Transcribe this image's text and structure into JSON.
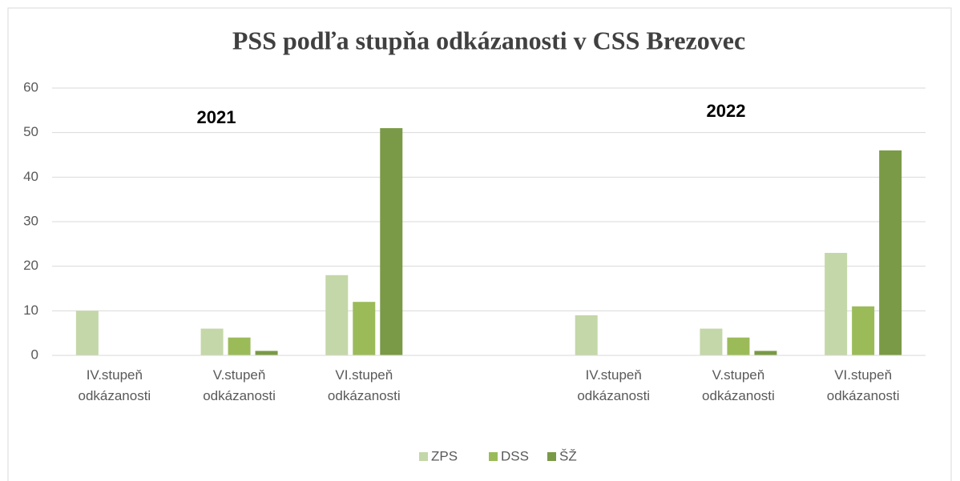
{
  "chart_data": {
    "type": "bar",
    "title": "PSS podľa stupňa odkázanosti v CSS Brezovec",
    "annotations": [
      "2021",
      "2022"
    ],
    "categories": [
      "IV.stupeň odkázanosti",
      "V.stupeň odkázanosti",
      "VI.stupeň odkázanosti",
      null,
      "IV.stupeň odkázanosti",
      "V.stupeň odkázanosti",
      "VI.stupeň odkázanosti"
    ],
    "series": [
      {
        "name": "ZPS",
        "color": "#c4d7a8",
        "values": [
          10,
          6,
          18,
          null,
          9,
          6,
          23
        ]
      },
      {
        "name": "DSS",
        "color": "#9bbb59",
        "values": [
          null,
          4,
          12,
          null,
          null,
          4,
          11
        ]
      },
      {
        "name": "ŠŽ",
        "color": "#7a9a47",
        "values": [
          null,
          1,
          51,
          null,
          null,
          1,
          46
        ]
      }
    ],
    "ylim": [
      0,
      60
    ],
    "yticks": [
      0,
      10,
      20,
      30,
      40,
      50,
      60
    ],
    "grid": true,
    "legend": "bottom"
  }
}
